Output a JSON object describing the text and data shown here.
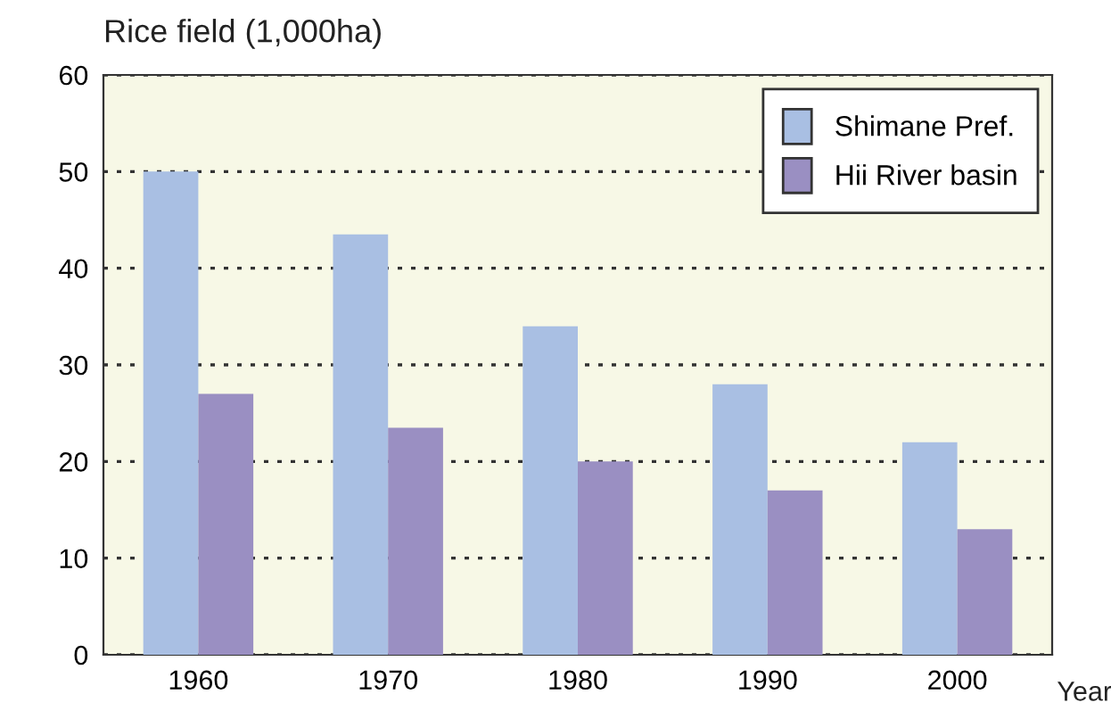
{
  "chart_data": {
    "type": "bar",
    "ylabel": "Rice field (1,000ha)",
    "xlabel": "Year",
    "categories": [
      "1960",
      "1970",
      "1980",
      "1990",
      "2000"
    ],
    "series": [
      {
        "name": "Shimane Pref.",
        "color": "#a9bfe3",
        "values": [
          50,
          43.5,
          34,
          28,
          22
        ]
      },
      {
        "name": "Hii River basin",
        "color": "#9a8fc2",
        "values": [
          27,
          23.5,
          20,
          17,
          13
        ]
      }
    ],
    "ylim": [
      0,
      60
    ],
    "yticks": [
      0,
      10,
      20,
      30,
      40,
      50,
      60
    ],
    "grid": "y",
    "line_style": "dotted",
    "legend": "top right"
  }
}
